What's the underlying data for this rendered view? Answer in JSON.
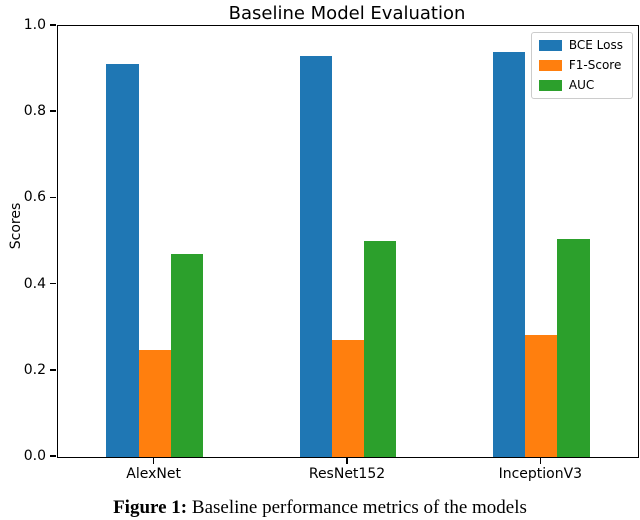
{
  "figure": {
    "caption_label": "Figure 1:",
    "caption_text": " Baseline performance metrics of the models"
  },
  "chart_data": {
    "type": "bar",
    "title": "Baseline Model Evaluation",
    "xlabel": "",
    "ylabel": "Scores",
    "categories": [
      "AlexNet",
      "ResNet152",
      "InceptionV3"
    ],
    "series": [
      {
        "name": "BCE Loss",
        "color": "#1f77b4",
        "values": [
          0.912,
          0.931,
          0.939
        ]
      },
      {
        "name": "F1-Score",
        "color": "#ff7f0e",
        "values": [
          0.249,
          0.272,
          0.284
        ]
      },
      {
        "name": "AUC",
        "color": "#2ca02c",
        "values": [
          0.47,
          0.502,
          0.505
        ]
      }
    ],
    "ylim": [
      0.0,
      1.0
    ],
    "yticks": [
      "0.0",
      "0.2",
      "0.4",
      "0.6",
      "0.8",
      "1.0"
    ],
    "legend_position": "upper right",
    "grid": false
  }
}
